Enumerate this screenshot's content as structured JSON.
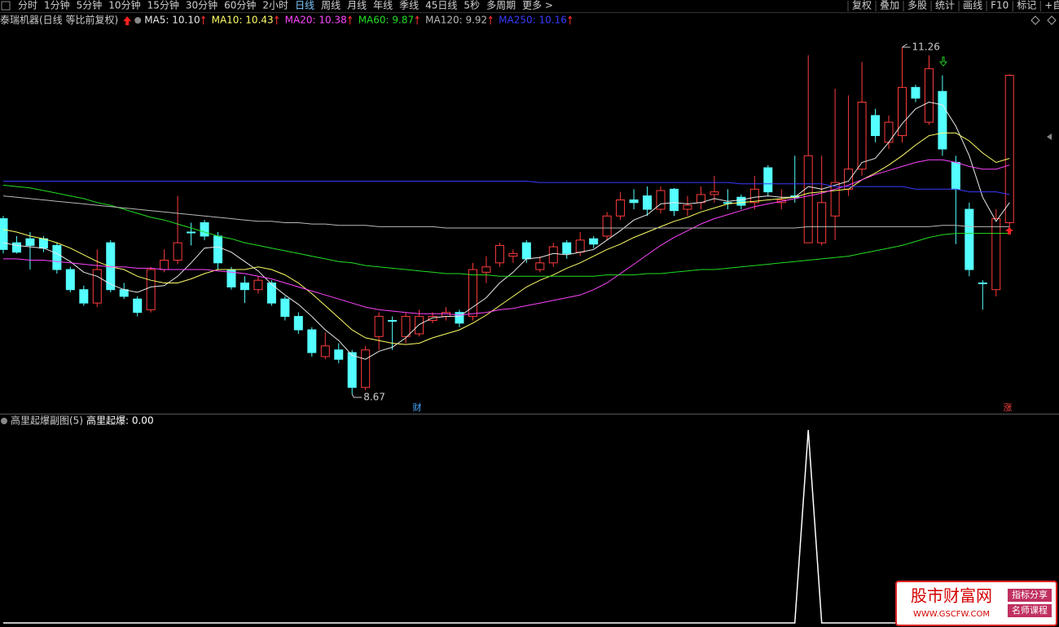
{
  "toolbar": {
    "tabs": [
      "分时",
      "1分钟",
      "5分钟",
      "10分钟",
      "15分钟",
      "30分钟",
      "60分钟",
      "2小时",
      "日线",
      "周线",
      "月线",
      "年线",
      "季线",
      "45日线",
      "5秒",
      "多周期",
      "更多 >"
    ],
    "active_tab": 8,
    "tools": [
      "复权",
      "叠加",
      "多股",
      "统计",
      "画线",
      "F10",
      "标记",
      "+自"
    ]
  },
  "chart_data": {
    "type": "candlestick",
    "title": "泰瑞机器(日线 等比前复权)",
    "up_color": "#ff3c3c",
    "down_color": "#54ffff",
    "open": [
      9.98,
      9.8,
      9.83,
      9.83,
      9.78,
      9.6,
      9.45,
      9.35,
      9.8,
      9.45,
      9.38,
      9.3,
      9.6,
      9.67,
      9.88,
      9.95,
      9.85,
      9.6,
      9.5,
      9.45,
      9.5,
      9.38,
      9.25,
      9.15,
      8.95,
      9.0,
      8.98,
      8.72,
      9.1,
      9.22,
      9.1,
      9.12,
      9.22,
      9.25,
      9.28,
      9.25,
      9.58,
      9.65,
      9.7,
      9.8,
      9.6,
      9.65,
      9.8,
      9.73,
      9.83,
      9.85,
      10.0,
      10.12,
      10.15,
      10.05,
      10.2,
      10.05,
      10.1,
      10.16,
      10.1,
      10.14,
      10.1,
      10.36,
      10.1,
      10.15,
      9.8,
      9.8,
      10.0,
      10.2,
      10.35,
      10.75,
      10.55,
      10.6,
      10.96,
      10.7,
      10.93,
      10.4,
      10.05,
      9.5,
      9.45,
      9.95
    ],
    "high": [
      10.0,
      9.85,
      9.88,
      9.85,
      9.8,
      9.62,
      9.48,
      9.75,
      9.82,
      9.5,
      9.4,
      9.62,
      9.75,
      10.15,
      9.95,
      9.97,
      9.88,
      9.62,
      9.55,
      9.55,
      9.52,
      9.4,
      9.28,
      9.17,
      9.13,
      9.05,
      9.0,
      9.03,
      9.28,
      9.25,
      9.28,
      9.3,
      9.28,
      9.32,
      9.3,
      9.65,
      9.7,
      9.8,
      9.75,
      9.82,
      9.7,
      9.8,
      9.82,
      9.88,
      9.85,
      10.03,
      10.18,
      10.2,
      10.22,
      10.22,
      10.21,
      10.15,
      10.22,
      10.3,
      10.2,
      10.16,
      10.3,
      10.38,
      10.2,
      10.45,
      11.2,
      10.45,
      10.95,
      10.9,
      11.15,
      10.8,
      10.75,
      11.26,
      10.98,
      11.2,
      11.05,
      10.45,
      10.1,
      9.52,
      10.05,
      11.06
    ],
    "low": [
      9.72,
      9.72,
      9.6,
      9.73,
      9.57,
      9.43,
      9.33,
      9.32,
      9.43,
      9.38,
      9.25,
      9.28,
      9.58,
      9.64,
      9.78,
      9.82,
      9.6,
      9.45,
      9.35,
      9.42,
      9.33,
      9.22,
      9.12,
      8.95,
      8.93,
      8.9,
      8.67,
      8.7,
      9.0,
      9.0,
      9.05,
      9.1,
      9.2,
      9.22,
      9.17,
      9.22,
      9.5,
      9.62,
      9.65,
      9.65,
      9.58,
      9.62,
      9.68,
      9.7,
      9.76,
      9.82,
      9.97,
      10.05,
      10.0,
      10.02,
      10.0,
      10.0,
      10.05,
      10.1,
      10.05,
      10.05,
      10.05,
      10.15,
      10.05,
      10.1,
      9.8,
      9.78,
      9.82,
      10.15,
      10.3,
      10.55,
      10.5,
      10.55,
      10.85,
      10.68,
      10.45,
      9.79,
      9.55,
      9.3,
      9.4,
      9.9
    ],
    "close": [
      9.75,
      9.73,
      9.78,
      9.76,
      9.6,
      9.45,
      9.35,
      9.6,
      9.45,
      9.4,
      9.28,
      9.6,
      9.67,
      9.8,
      9.88,
      9.85,
      9.65,
      9.47,
      9.45,
      9.52,
      9.35,
      9.25,
      9.15,
      8.98,
      9.03,
      8.93,
      8.72,
      9.0,
      9.25,
      9.22,
      9.25,
      9.25,
      9.25,
      9.28,
      9.2,
      9.6,
      9.62,
      9.78,
      9.72,
      9.68,
      9.65,
      9.77,
      9.72,
      9.82,
      9.79,
      10.0,
      10.12,
      10.1,
      10.05,
      10.19,
      10.04,
      10.08,
      10.16,
      10.18,
      10.1,
      10.08,
      10.2,
      10.18,
      10.12,
      10.14,
      10.45,
      10.1,
      10.25,
      10.35,
      10.85,
      10.6,
      10.7,
      10.96,
      10.88,
      11.1,
      10.5,
      10.2,
      9.6,
      9.5,
      9.98,
      11.05
    ],
    "series": [
      {
        "name": "MA5: 10.10",
        "color": "#e8e8e8",
        "values": [
          9.8,
          9.78,
          9.77,
          9.76,
          9.72,
          9.66,
          9.58,
          9.55,
          9.49,
          9.45,
          9.43,
          9.47,
          9.48,
          9.55,
          9.65,
          9.76,
          9.77,
          9.73,
          9.66,
          9.59,
          9.49,
          9.41,
          9.34,
          9.25,
          9.15,
          9.07,
          8.96,
          8.93,
          8.99,
          9.02,
          9.09,
          9.19,
          9.24,
          9.25,
          9.25,
          9.32,
          9.39,
          9.5,
          9.58,
          9.68,
          9.69,
          9.72,
          9.71,
          9.73,
          9.75,
          9.82,
          9.89,
          9.97,
          10.01,
          10.09,
          10.1,
          10.09,
          10.1,
          10.13,
          10.11,
          10.12,
          10.14,
          10.15,
          10.14,
          10.14,
          10.22,
          10.2,
          10.23,
          10.26,
          10.4,
          10.43,
          10.55,
          10.69,
          10.8,
          10.85,
          10.83,
          10.67,
          10.45,
          10.14,
          9.96,
          10.1
        ]
      },
      {
        "name": "MA10: 10.43",
        "color": "#ffff66",
        "values": [
          9.9,
          9.88,
          9.85,
          9.83,
          9.8,
          9.76,
          9.71,
          9.66,
          9.62,
          9.6,
          9.55,
          9.52,
          9.5,
          9.5,
          9.53,
          9.57,
          9.6,
          9.6,
          9.6,
          9.62,
          9.6,
          9.56,
          9.5,
          9.42,
          9.33,
          9.24,
          9.15,
          9.09,
          9.07,
          9.05,
          9.04,
          9.05,
          9.09,
          9.12,
          9.15,
          9.2,
          9.26,
          9.33,
          9.4,
          9.47,
          9.52,
          9.56,
          9.61,
          9.65,
          9.7,
          9.75,
          9.79,
          9.84,
          9.88,
          9.92,
          9.96,
          9.99,
          10.03,
          10.06,
          10.09,
          10.1,
          10.11,
          10.12,
          10.13,
          10.14,
          10.17,
          10.18,
          10.19,
          10.2,
          10.27,
          10.32,
          10.38,
          10.45,
          10.53,
          10.6,
          10.62,
          10.62,
          10.56,
          10.47,
          10.4,
          10.43
        ]
      },
      {
        "name": "MA20: 10.38",
        "color": "#ff44ff",
        "values": [
          9.68,
          9.68,
          9.67,
          9.67,
          9.66,
          9.65,
          9.64,
          9.63,
          9.62,
          9.62,
          9.61,
          9.61,
          9.6,
          9.6,
          9.6,
          9.6,
          9.59,
          9.58,
          9.57,
          9.55,
          9.53,
          9.5,
          9.47,
          9.44,
          9.41,
          9.38,
          9.35,
          9.32,
          9.3,
          9.29,
          9.28,
          9.27,
          9.27,
          9.27,
          9.26,
          9.27,
          9.28,
          9.3,
          9.31,
          9.33,
          9.35,
          9.37,
          9.39,
          9.41,
          9.45,
          9.5,
          9.57,
          9.64,
          9.71,
          9.78,
          9.84,
          9.89,
          9.94,
          9.98,
          10.01,
          10.04,
          10.07,
          10.09,
          10.11,
          10.13,
          10.15,
          10.17,
          10.2,
          10.23,
          10.27,
          10.31,
          10.34,
          10.37,
          10.4,
          10.42,
          10.42,
          10.4,
          10.37,
          10.35,
          10.35,
          10.38
        ]
      },
      {
        "name": "MA60: 9.87",
        "color": "#22dd22",
        "values": [
          10.23,
          10.22,
          10.21,
          10.19,
          10.17,
          10.15,
          10.13,
          10.1,
          10.08,
          10.05,
          10.02,
          9.99,
          9.97,
          9.94,
          9.91,
          9.88,
          9.85,
          9.83,
          9.8,
          9.78,
          9.76,
          9.74,
          9.72,
          9.7,
          9.68,
          9.66,
          9.65,
          9.63,
          9.62,
          9.61,
          9.6,
          9.59,
          9.58,
          9.57,
          9.57,
          9.56,
          9.56,
          9.55,
          9.55,
          9.55,
          9.55,
          9.55,
          9.55,
          9.55,
          9.55,
          9.56,
          9.56,
          9.56,
          9.57,
          9.57,
          9.58,
          9.59,
          9.6,
          9.6,
          9.61,
          9.62,
          9.63,
          9.64,
          9.65,
          9.66,
          9.67,
          9.68,
          9.69,
          9.7,
          9.72,
          9.74,
          9.76,
          9.78,
          9.81,
          9.84,
          9.86,
          9.87,
          9.87,
          9.87,
          9.87,
          9.87
        ]
      },
      {
        "name": "MA120: 9.92",
        "color": "#b8b8b8",
        "values": [
          10.15,
          10.14,
          10.13,
          10.12,
          10.11,
          10.1,
          10.09,
          10.08,
          10.07,
          10.06,
          10.05,
          10.04,
          10.03,
          10.02,
          10.01,
          10.0,
          9.99,
          9.98,
          9.97,
          9.96,
          9.96,
          9.95,
          9.95,
          9.94,
          9.94,
          9.93,
          9.93,
          9.93,
          9.92,
          9.92,
          9.92,
          9.92,
          9.92,
          9.91,
          9.91,
          9.91,
          9.91,
          9.91,
          9.91,
          9.91,
          9.91,
          9.91,
          9.91,
          9.91,
          9.91,
          9.91,
          9.91,
          9.91,
          9.91,
          9.91,
          9.91,
          9.91,
          9.91,
          9.91,
          9.91,
          9.91,
          9.91,
          9.91,
          9.91,
          9.91,
          9.92,
          9.92,
          9.92,
          9.92,
          9.92,
          9.92,
          9.92,
          9.92,
          9.92,
          9.92,
          9.93,
          9.93,
          9.92,
          9.92,
          9.92,
          9.92
        ]
      },
      {
        "name": "MA250: 10.16",
        "color": "#3a3aff",
        "values": [
          10.26,
          10.26,
          10.26,
          10.26,
          10.26,
          10.26,
          10.26,
          10.26,
          10.26,
          10.26,
          10.26,
          10.26,
          10.26,
          10.26,
          10.26,
          10.26,
          10.26,
          10.26,
          10.26,
          10.26,
          10.26,
          10.26,
          10.26,
          10.26,
          10.26,
          10.26,
          10.26,
          10.26,
          10.26,
          10.26,
          10.26,
          10.26,
          10.26,
          10.26,
          10.26,
          10.26,
          10.26,
          10.26,
          10.26,
          10.26,
          10.25,
          10.25,
          10.25,
          10.25,
          10.25,
          10.25,
          10.25,
          10.25,
          10.25,
          10.25,
          10.25,
          10.25,
          10.25,
          10.25,
          10.25,
          10.24,
          10.24,
          10.24,
          10.24,
          10.24,
          10.24,
          10.24,
          10.22,
          10.22,
          10.22,
          10.22,
          10.22,
          10.22,
          10.2,
          10.2,
          10.2,
          10.2,
          10.18,
          10.18,
          10.18,
          10.16
        ]
      }
    ],
    "markers": [
      "财",
      "涨"
    ],
    "indicator": {
      "title": "高里起爆副图(5)",
      "label": "高里起爆: 0.00",
      "color": "#ffffff",
      "values": [
        0,
        0,
        0,
        0,
        0,
        0,
        0,
        0,
        0,
        0,
        0,
        0,
        0,
        0,
        0,
        0,
        0,
        0,
        0,
        0,
        0,
        0,
        0,
        0,
        0,
        0,
        0,
        0,
        0,
        0,
        0,
        0,
        0,
        0,
        0,
        0,
        0,
        0,
        0,
        0,
        0,
        0,
        0,
        0,
        0,
        0,
        0,
        0,
        0,
        0,
        0,
        0,
        0,
        0,
        0,
        0,
        0,
        0,
        0,
        0,
        1,
        0,
        0,
        0,
        0,
        0,
        0,
        0,
        0,
        0,
        0,
        0,
        0,
        0,
        0,
        0
      ]
    }
  },
  "watermark": {
    "name": "股市财富网",
    "url": "WWW.GSCFW.COM",
    "tags": [
      "指标分享",
      "名师课程"
    ]
  }
}
